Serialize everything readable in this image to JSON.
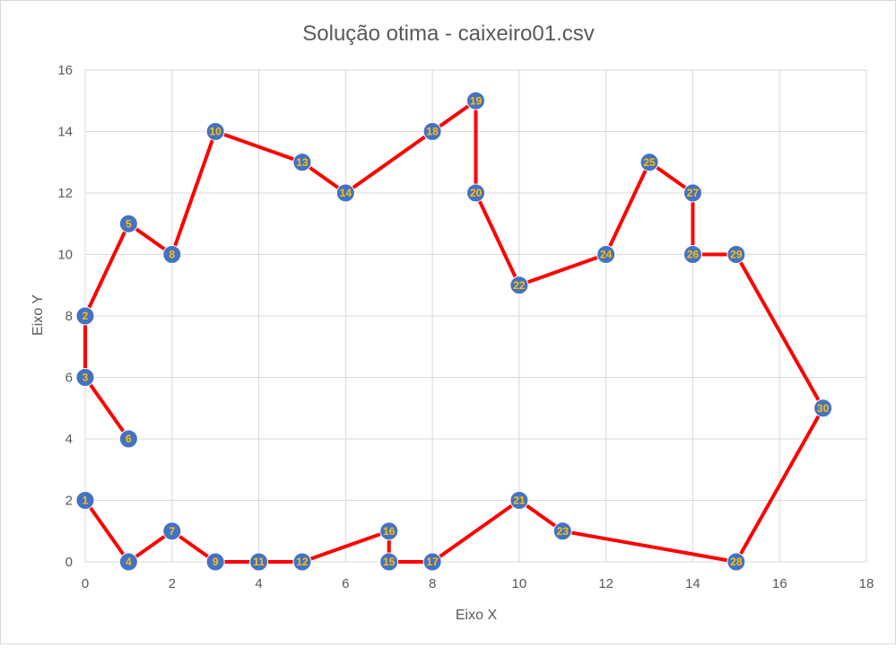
{
  "chart_data": {
    "type": "scatter",
    "title": "Solução otima - caixeiro01.csv",
    "xlabel": "Eixo X",
    "ylabel": "Eixo Y",
    "xlim": [
      0,
      18
    ],
    "ylim": [
      0,
      16
    ],
    "xticks": [
      0,
      2,
      4,
      6,
      8,
      10,
      12,
      14,
      16,
      18
    ],
    "yticks": [
      0,
      2,
      4,
      6,
      8,
      10,
      12,
      14,
      16
    ],
    "grid": true,
    "legend": "none",
    "colors": {
      "route": "#ff0000",
      "node": "#4472c4",
      "node_label": "#ffc000"
    },
    "points": [
      {
        "id": "1",
        "x": 0,
        "y": 2
      },
      {
        "id": "2",
        "x": 0,
        "y": 8
      },
      {
        "id": "3",
        "x": 0,
        "y": 6
      },
      {
        "id": "4",
        "x": 1,
        "y": 0
      },
      {
        "id": "5",
        "x": 1,
        "y": 11
      },
      {
        "id": "6",
        "x": 1,
        "y": 4
      },
      {
        "id": "7",
        "x": 2,
        "y": 1
      },
      {
        "id": "8",
        "x": 2,
        "y": 10
      },
      {
        "id": "9",
        "x": 3,
        "y": 0
      },
      {
        "id": "10",
        "x": 3,
        "y": 14
      },
      {
        "id": "11",
        "x": 4,
        "y": 0
      },
      {
        "id": "12",
        "x": 5,
        "y": 0
      },
      {
        "id": "13",
        "x": 5,
        "y": 13
      },
      {
        "id": "14",
        "x": 6,
        "y": 12
      },
      {
        "id": "15",
        "x": 7,
        "y": 0
      },
      {
        "id": "16",
        "x": 7,
        "y": 1
      },
      {
        "id": "17",
        "x": 8,
        "y": 0
      },
      {
        "id": "18",
        "x": 8,
        "y": 14
      },
      {
        "id": "19",
        "x": 9,
        "y": 15
      },
      {
        "id": "20",
        "x": 9,
        "y": 12
      },
      {
        "id": "21",
        "x": 10,
        "y": 2
      },
      {
        "id": "22",
        "x": 10,
        "y": 9
      },
      {
        "id": "23",
        "x": 11,
        "y": 1
      },
      {
        "id": "24",
        "x": 12,
        "y": 10
      },
      {
        "id": "25",
        "x": 13,
        "y": 13
      },
      {
        "id": "26",
        "x": 14,
        "y": 10
      },
      {
        "id": "27",
        "x": 14,
        "y": 12
      },
      {
        "id": "28",
        "x": 15,
        "y": 0
      },
      {
        "id": "29",
        "x": 15,
        "y": 10
      },
      {
        "id": "30",
        "x": 17,
        "y": 5
      }
    ],
    "route": [
      "6",
      "3",
      "2",
      "5",
      "8",
      "10",
      "13",
      "14",
      "18",
      "19",
      "20",
      "22",
      "24",
      "25",
      "27",
      "26",
      "29",
      "30",
      "28",
      "23",
      "21",
      "17",
      "15",
      "16",
      "12",
      "11",
      "9",
      "7",
      "4",
      "1"
    ]
  }
}
